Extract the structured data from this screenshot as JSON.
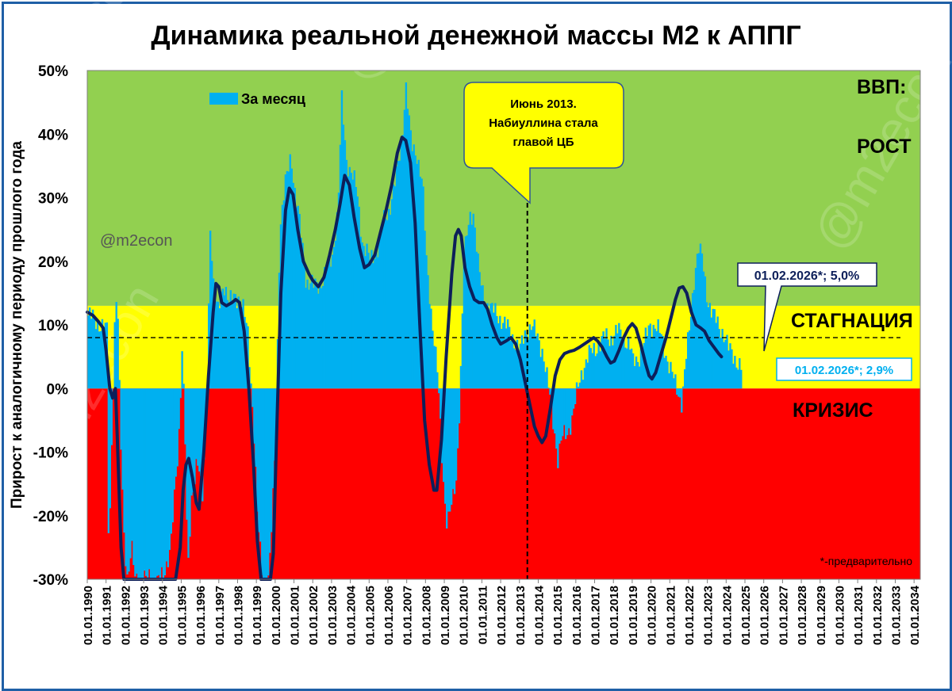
{
  "chart_data": {
    "type": "bar",
    "title": "Динамика реальной денежной массы М2 к АППГ",
    "ylabel": "Прирост к аналогичному периоду прошлого года",
    "xlabel": "",
    "ylim": [
      -30,
      50
    ],
    "y_ticks": [
      50,
      40,
      30,
      20,
      10,
      0,
      -10,
      -20,
      -30
    ],
    "y_tick_labels": [
      "50%",
      "40%",
      "30%",
      "20%",
      "10%",
      "0%",
      "-10%",
      "-20%",
      "-30%"
    ],
    "x_tick_labels": [
      "01.01.1990",
      "01.01.1991",
      "01.01.1992",
      "01.01.1993",
      "01.01.1994",
      "01.01.1995",
      "01.01.1996",
      "01.01.1997",
      "01.01.1998",
      "01.01.1999",
      "01.01.2000",
      "01.01.2001",
      "01.01.2002",
      "01.01.2003",
      "01.01.2004",
      "01.01.2005",
      "01.01.2006",
      "01.01.2007",
      "01.01.2008",
      "01.01.2009",
      "01.01.2010",
      "01.01.2011",
      "01.01.2012",
      "01.01.2013",
      "01.01.2014",
      "01.01.2015",
      "01.01.2016",
      "01.01.2017",
      "01.01.2018",
      "01.01.2019",
      "01.01.2020",
      "01.01.2021",
      "01.01.2022",
      "01.01.2023",
      "01.01.2024",
      "01.01.2025",
      "01.01.2026",
      "01.01.2027",
      "01.01.2028",
      "01.01.2029",
      "01.01.2030",
      "01.01.2031",
      "01.01.2032",
      "01.01.2033",
      "01.01.2034"
    ],
    "x_range_years": [
      1990,
      2034.33
    ],
    "zones": [
      {
        "name": "growth",
        "label": "РОСТ",
        "from": 13,
        "to": 50,
        "color": "#92d050"
      },
      {
        "name": "stagnation",
        "label": "СТАГНАЦИЯ",
        "from": 0,
        "to": 13,
        "color": "#ffff00"
      },
      {
        "name": "crisis",
        "label": "КРИЗИС",
        "from": -30,
        "to": 0,
        "color": "#ff0000"
      }
    ],
    "zone_header": "ВВП:",
    "reference_line": {
      "value": 8,
      "style": "dashed"
    },
    "event_line": {
      "year": 2013.42,
      "label_lines": [
        "Июнь 2013.",
        "Набиуллина стала",
        "главой ЦБ"
      ]
    },
    "series": [
      {
        "name": "За месяц",
        "kind": "bar",
        "color": "#00b0f0",
        "anchor_points": [
          [
            1990.0,
            11.5
          ],
          [
            1990.5,
            10.5
          ],
          [
            1991.0,
            9.0
          ],
          [
            1991.1,
            -28
          ],
          [
            1991.3,
            -1.5
          ],
          [
            1991.45,
            13
          ],
          [
            1991.55,
            15
          ],
          [
            1991.7,
            -5
          ],
          [
            1991.9,
            -22
          ],
          [
            1992.1,
            -30
          ],
          [
            1992.3,
            -25
          ],
          [
            1992.5,
            -30
          ],
          [
            1993.0,
            -30
          ],
          [
            1993.5,
            -30
          ],
          [
            1994.0,
            -30
          ],
          [
            1994.4,
            -24
          ],
          [
            1994.8,
            -10
          ],
          [
            1995.0,
            7
          ],
          [
            1995.15,
            -5
          ],
          [
            1995.3,
            -30
          ],
          [
            1995.5,
            -18
          ],
          [
            1995.8,
            -10
          ],
          [
            1996.1,
            -18
          ],
          [
            1996.35,
            3
          ],
          [
            1996.5,
            26
          ],
          [
            1996.7,
            14
          ],
          [
            1996.9,
            12
          ],
          [
            1997.2,
            17
          ],
          [
            1997.5,
            13
          ],
          [
            1997.8,
            15
          ],
          [
            1998.1,
            14
          ],
          [
            1998.5,
            9
          ],
          [
            1998.8,
            -5
          ],
          [
            1999.0,
            -20
          ],
          [
            1999.3,
            -30
          ],
          [
            1999.6,
            -30
          ],
          [
            1999.8,
            -20
          ],
          [
            2000.0,
            -5
          ],
          [
            2000.2,
            25
          ],
          [
            2000.5,
            32
          ],
          [
            2000.8,
            37
          ],
          [
            2001.0,
            31
          ],
          [
            2001.3,
            25
          ],
          [
            2001.6,
            17
          ],
          [
            2002.0,
            16
          ],
          [
            2002.5,
            17
          ],
          [
            2003.0,
            21
          ],
          [
            2003.3,
            28
          ],
          [
            2003.5,
            45
          ],
          [
            2003.75,
            36
          ],
          [
            2004.0,
            34
          ],
          [
            2004.3,
            31
          ],
          [
            2004.6,
            23
          ],
          [
            2005.0,
            20
          ],
          [
            2005.4,
            22
          ],
          [
            2005.7,
            26
          ],
          [
            2006.0,
            28
          ],
          [
            2006.4,
            33
          ],
          [
            2006.7,
            39
          ],
          [
            2006.9,
            48
          ],
          [
            2007.2,
            38
          ],
          [
            2007.5,
            37
          ],
          [
            2007.8,
            32
          ],
          [
            2008.0,
            20
          ],
          [
            2008.3,
            11
          ],
          [
            2008.6,
            2
          ],
          [
            2008.9,
            -14
          ],
          [
            2009.1,
            -21
          ],
          [
            2009.4,
            -18
          ],
          [
            2009.6,
            -14
          ],
          [
            2009.8,
            0
          ],
          [
            2010.0,
            20
          ],
          [
            2010.3,
            27
          ],
          [
            2010.5,
            28
          ],
          [
            2010.8,
            18
          ],
          [
            2011.0,
            15
          ],
          [
            2011.3,
            13
          ],
          [
            2011.6,
            12
          ],
          [
            2012.0,
            11
          ],
          [
            2012.4,
            9
          ],
          [
            2012.8,
            7
          ],
          [
            2013.0,
            6
          ],
          [
            2013.3,
            9
          ],
          [
            2013.6,
            10
          ],
          [
            2013.9,
            8
          ],
          [
            2014.2,
            6
          ],
          [
            2014.5,
            0
          ],
          [
            2014.8,
            -6
          ],
          [
            2015.0,
            -11
          ],
          [
            2015.2,
            -8
          ],
          [
            2015.5,
            -7
          ],
          [
            2015.8,
            -4
          ],
          [
            2016.0,
            -1
          ],
          [
            2016.3,
            3
          ],
          [
            2016.6,
            5
          ],
          [
            2016.9,
            6
          ],
          [
            2017.2,
            7
          ],
          [
            2017.5,
            8
          ],
          [
            2017.8,
            8
          ],
          [
            2018.2,
            9
          ],
          [
            2018.5,
            8
          ],
          [
            2018.8,
            7
          ],
          [
            2019.0,
            4
          ],
          [
            2019.3,
            5
          ],
          [
            2019.6,
            7
          ],
          [
            2019.9,
            10
          ],
          [
            2020.2,
            10
          ],
          [
            2020.5,
            8
          ],
          [
            2020.8,
            5
          ],
          [
            2021.1,
            2
          ],
          [
            2021.3,
            0
          ],
          [
            2021.6,
            -2
          ],
          [
            2021.8,
            4
          ],
          [
            2022.0,
            9
          ],
          [
            2022.3,
            19
          ],
          [
            2022.5,
            22
          ],
          [
            2022.7,
            20
          ],
          [
            2022.9,
            15
          ],
          [
            2023.2,
            12
          ],
          [
            2023.5,
            10
          ],
          [
            2023.8,
            9
          ],
          [
            2024.1,
            6
          ],
          [
            2024.4,
            5
          ],
          [
            2024.6,
            4
          ],
          [
            2024.8,
            2.9
          ]
        ]
      },
      {
        "name": "trend",
        "kind": "line",
        "color": "#0d1f5a",
        "points": [
          [
            1990.0,
            12
          ],
          [
            1990.3,
            11.5
          ],
          [
            1990.6,
            10.5
          ],
          [
            1990.85,
            9.5
          ],
          [
            1991.0,
            6
          ],
          [
            1991.2,
            0
          ],
          [
            1991.35,
            -1.5
          ],
          [
            1991.5,
            0
          ],
          [
            1991.6,
            -8
          ],
          [
            1991.8,
            -25
          ],
          [
            1991.95,
            -30
          ],
          [
            1994.7,
            -30
          ],
          [
            1994.95,
            -25
          ],
          [
            1995.1,
            -16
          ],
          [
            1995.25,
            -12
          ],
          [
            1995.4,
            -11
          ],
          [
            1995.6,
            -14
          ],
          [
            1995.8,
            -18
          ],
          [
            1995.95,
            -19
          ],
          [
            1996.2,
            -10
          ],
          [
            1996.45,
            2
          ],
          [
            1996.7,
            12
          ],
          [
            1996.85,
            16.5
          ],
          [
            1997.0,
            16
          ],
          [
            1997.15,
            13.5
          ],
          [
            1997.4,
            13
          ],
          [
            1997.7,
            13.5
          ],
          [
            1997.9,
            14
          ],
          [
            1998.1,
            13.5
          ],
          [
            1998.35,
            9
          ],
          [
            1998.6,
            0
          ],
          [
            1998.85,
            -12
          ],
          [
            1999.05,
            -24
          ],
          [
            1999.25,
            -30
          ],
          [
            1999.75,
            -30
          ],
          [
            1999.9,
            -26
          ],
          [
            2000.1,
            -5
          ],
          [
            2000.3,
            15
          ],
          [
            2000.55,
            28
          ],
          [
            2000.75,
            31.5
          ],
          [
            2000.95,
            30.5
          ],
          [
            2001.2,
            25
          ],
          [
            2001.5,
            20
          ],
          [
            2001.8,
            18
          ],
          [
            2002.0,
            17
          ],
          [
            2002.3,
            16
          ],
          [
            2002.6,
            17.5
          ],
          [
            2002.9,
            21
          ],
          [
            2003.2,
            25
          ],
          [
            2003.45,
            29
          ],
          [
            2003.7,
            33.5
          ],
          [
            2003.95,
            32
          ],
          [
            2004.2,
            27
          ],
          [
            2004.5,
            22
          ],
          [
            2004.75,
            19
          ],
          [
            2005.0,
            19.5
          ],
          [
            2005.3,
            21
          ],
          [
            2005.6,
            24.5
          ],
          [
            2005.9,
            28
          ],
          [
            2006.2,
            32
          ],
          [
            2006.5,
            37
          ],
          [
            2006.75,
            39.5
          ],
          [
            2006.95,
            39
          ],
          [
            2007.2,
            35.5
          ],
          [
            2007.45,
            26
          ],
          [
            2007.7,
            10
          ],
          [
            2007.95,
            -5
          ],
          [
            2008.2,
            -12
          ],
          [
            2008.45,
            -16
          ],
          [
            2008.6,
            -16
          ],
          [
            2008.85,
            -8
          ],
          [
            2009.1,
            5
          ],
          [
            2009.4,
            18
          ],
          [
            2009.6,
            24
          ],
          [
            2009.75,
            25
          ],
          [
            2009.9,
            24
          ],
          [
            2010.1,
            19
          ],
          [
            2010.35,
            16
          ],
          [
            2010.6,
            14
          ],
          [
            2010.85,
            13.5
          ],
          [
            2011.1,
            13.5
          ],
          [
            2011.3,
            12.5
          ],
          [
            2011.55,
            10
          ],
          [
            2011.8,
            8
          ],
          [
            2012.0,
            7
          ],
          [
            2012.3,
            7.5
          ],
          [
            2012.55,
            8
          ],
          [
            2012.8,
            7
          ],
          [
            2013.05,
            4.5
          ],
          [
            2013.3,
            1
          ],
          [
            2013.55,
            -2.5
          ],
          [
            2013.8,
            -6
          ],
          [
            2014.0,
            -7.5
          ],
          [
            2014.2,
            -8.5
          ],
          [
            2014.4,
            -7.5
          ],
          [
            2014.65,
            -3
          ],
          [
            2014.9,
            2
          ],
          [
            2015.15,
            4.5
          ],
          [
            2015.4,
            5.5
          ],
          [
            2015.65,
            5.8
          ],
          [
            2015.9,
            6
          ],
          [
            2016.2,
            6.5
          ],
          [
            2016.45,
            7
          ],
          [
            2016.7,
            7.5
          ],
          [
            2016.95,
            8
          ],
          [
            2017.15,
            7.5
          ],
          [
            2017.4,
            6.5
          ],
          [
            2017.65,
            5
          ],
          [
            2017.85,
            4
          ],
          [
            2018.05,
            4.3
          ],
          [
            2018.3,
            6
          ],
          [
            2018.55,
            8
          ],
          [
            2018.8,
            9.5
          ],
          [
            2019.0,
            10.2
          ],
          [
            2019.2,
            9.5
          ],
          [
            2019.45,
            7
          ],
          [
            2019.7,
            4
          ],
          [
            2019.9,
            2
          ],
          [
            2020.05,
            1.5
          ],
          [
            2020.25,
            2.5
          ],
          [
            2020.5,
            5
          ],
          [
            2020.8,
            8
          ],
          [
            2021.05,
            11
          ],
          [
            2021.3,
            14
          ],
          [
            2021.5,
            15.8
          ],
          [
            2021.7,
            16
          ],
          [
            2021.9,
            15
          ],
          [
            2022.15,
            12
          ],
          [
            2022.4,
            10
          ],
          [
            2022.65,
            9.5
          ],
          [
            2022.85,
            9
          ],
          [
            2023.1,
            7.5
          ],
          [
            2023.35,
            6.5
          ],
          [
            2023.6,
            5.5
          ],
          [
            2023.75,
            5.0
          ]
        ]
      }
    ],
    "annotations": [
      {
        "text": "01.02.2026*; 5,0%",
        "color": "#0d1f5a"
      },
      {
        "text": "01.02.2026*; 2,9%",
        "color": "#00b0f0"
      },
      {
        "text": "*-предварительно",
        "color": "#000000"
      }
    ],
    "watermark": "@m2econ",
    "credit": "@m2econ",
    "grid": false,
    "legend": "top-left"
  }
}
